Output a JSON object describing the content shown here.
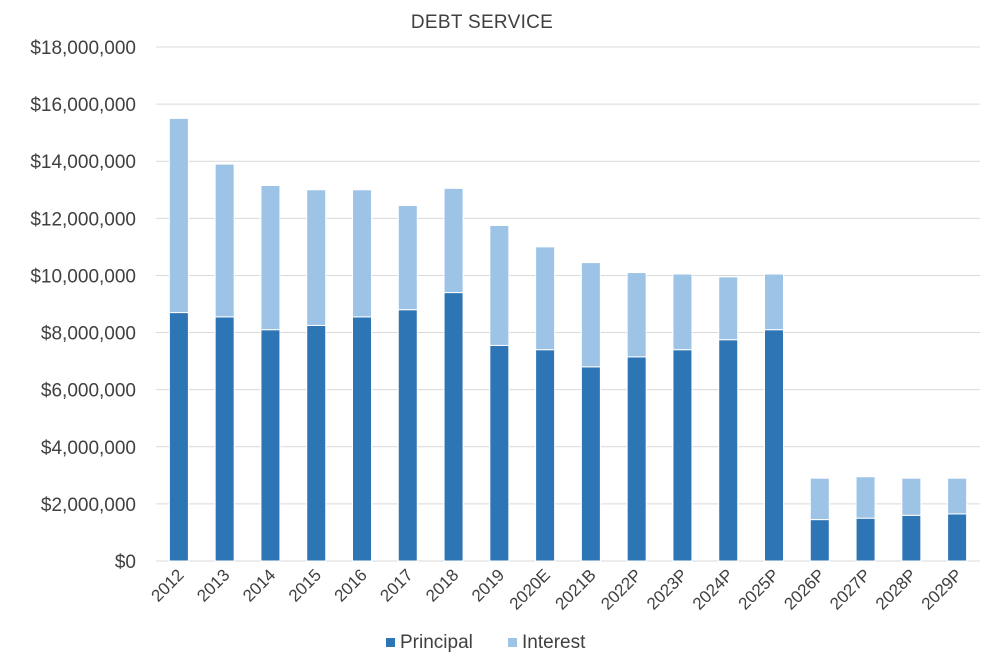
{
  "chart_data": {
    "type": "bar",
    "stacked": true,
    "title": "DEBT SERVICE",
    "xlabel": "",
    "ylabel": "",
    "categories": [
      "2012",
      "2013",
      "2014",
      "2015",
      "2016",
      "2017",
      "2018",
      "2019",
      "2020E",
      "2021B",
      "2022P",
      "2023P",
      "2024P",
      "2025P",
      "2026P",
      "2027P",
      "2028P",
      "2029P"
    ],
    "series": [
      {
        "name": "Principal",
        "color": "#2e75b6",
        "values": [
          8700000,
          8550000,
          8100000,
          8250000,
          8550000,
          8800000,
          9400000,
          7550000,
          7400000,
          6800000,
          7150000,
          7400000,
          7750000,
          8100000,
          1450000,
          1500000,
          1600000,
          1650000
        ]
      },
      {
        "name": "Interest",
        "color": "#9dc3e6",
        "values": [
          6800000,
          5350000,
          5050000,
          4750000,
          4450000,
          3650000,
          3650000,
          4200000,
          3600000,
          3650000,
          2950000,
          2650000,
          2200000,
          1950000,
          1450000,
          1450000,
          1300000,
          1250000
        ]
      }
    ],
    "ylim": [
      0,
      18000000
    ],
    "ytick_step": 2000000,
    "ytick_labels": [
      "$0",
      "$2,000,000",
      "$4,000,000",
      "$6,000,000",
      "$8,000,000",
      "$10,000,000",
      "$12,000,000",
      "$14,000,000",
      "$16,000,000",
      "$18,000,000"
    ],
    "grid": true,
    "legend_position": "bottom"
  }
}
